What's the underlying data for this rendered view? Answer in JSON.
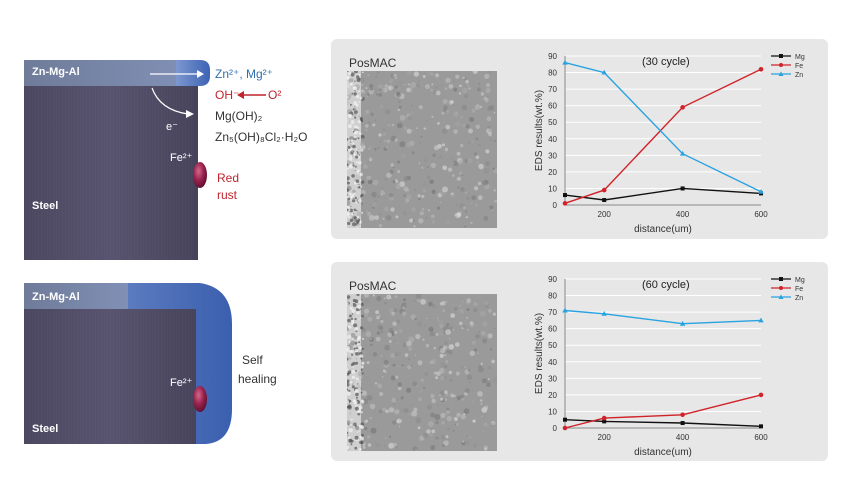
{
  "top": {
    "coating_label": "Zn-Mg-Al",
    "steel_label": "Steel",
    "ion_zn_mg": "Zn²⁺, Mg²⁺",
    "ion_oh": "OH⁻",
    "ion_o2": "O²",
    "product_mg": "Mg(OH)₂",
    "product_zn": "Zn₅(OH)₈Cl₂·H₂O",
    "electron": "e⁻",
    "fe_ion": "Fe²⁺",
    "rust_line1": "Red",
    "rust_line2": "rust"
  },
  "bottom": {
    "coating_label": "Zn-Mg-Al",
    "steel_label": "Steel",
    "fe_ion": "Fe²⁺",
    "heal_line1": "Self",
    "heal_line2": "healing"
  },
  "panels": [
    {
      "title": "PosMAC"
    },
    {
      "title": "PosMAC"
    }
  ],
  "colors": {
    "mg": "#111111",
    "fe": "#d0232a",
    "zn": "#29a3e0"
  },
  "chart_data": [
    {
      "type": "line",
      "title": "(30 cycle)",
      "xlabel": "distance(um)",
      "ylabel": "EDS results(wt.%)",
      "xlim": [
        100,
        600
      ],
      "xticks": [
        200,
        400,
        600
      ],
      "ylim": [
        0,
        90
      ],
      "yticks": [
        0,
        10,
        20,
        30,
        40,
        50,
        60,
        70,
        80,
        90
      ],
      "x": [
        100,
        200,
        400,
        600
      ],
      "series": [
        {
          "name": "Mg",
          "values": [
            6,
            3,
            10,
            7
          ]
        },
        {
          "name": "Fe",
          "values": [
            1,
            9,
            59,
            82
          ]
        },
        {
          "name": "Zn",
          "values": [
            86,
            80,
            31,
            8
          ]
        }
      ],
      "legend": "top-right",
      "grid": true
    },
    {
      "type": "line",
      "title": "(60 cycle)",
      "xlabel": "distance(um)",
      "ylabel": "EDS results(wt.%)",
      "xlim": [
        100,
        600
      ],
      "xticks": [
        200,
        400,
        600
      ],
      "ylim": [
        0,
        90
      ],
      "yticks": [
        0,
        10,
        20,
        30,
        40,
        50,
        60,
        70,
        80,
        90
      ],
      "x": [
        100,
        200,
        400,
        600
      ],
      "series": [
        {
          "name": "Mg",
          "values": [
            5,
            4,
            3,
            1
          ]
        },
        {
          "name": "Fe",
          "values": [
            0,
            6,
            8,
            20
          ]
        },
        {
          "name": "Zn",
          "values": [
            71,
            69,
            63,
            65
          ]
        }
      ],
      "legend": "top-right",
      "grid": true
    }
  ]
}
